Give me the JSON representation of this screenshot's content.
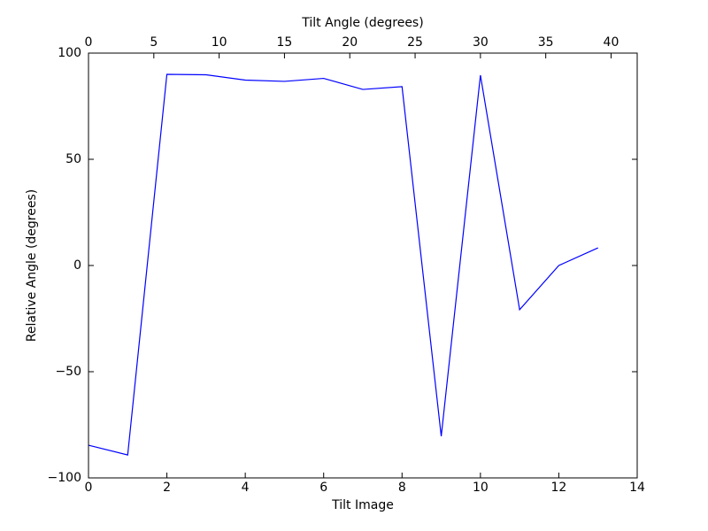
{
  "chart_data": {
    "type": "line",
    "xlabel": "Tilt Image",
    "ylabel": "Relative Angle (degrees)",
    "x2label": "Tilt Angle (degrees)",
    "x": [
      0,
      1,
      2,
      3,
      4,
      5,
      6,
      7,
      8,
      9,
      10,
      11,
      12,
      13
    ],
    "series": [
      {
        "name": "Relative Angle",
        "color": "#0000ff",
        "values": [
          -84.6,
          -89.2,
          90,
          89.8,
          87.3,
          86.7,
          88.1,
          82.9,
          84.2,
          -80.4,
          89.6,
          -20.8,
          0,
          8.3
        ]
      }
    ],
    "xlim": [
      0,
      14
    ],
    "xticks": [
      0,
      2,
      4,
      6,
      8,
      10,
      12,
      14
    ],
    "x2lim": [
      0,
      42
    ],
    "x2ticks": [
      0,
      5,
      10,
      15,
      20,
      25,
      30,
      35,
      40
    ],
    "ylim": [
      -100,
      100
    ],
    "yticks": [
      {
        "value": -100,
        "label": "−100"
      },
      {
        "value": -50,
        "label": "−50"
      },
      0,
      50,
      100
    ],
    "grid": false
  }
}
